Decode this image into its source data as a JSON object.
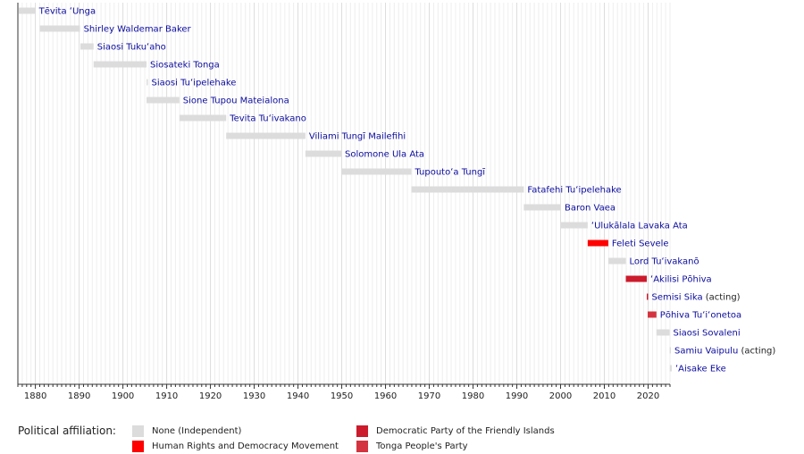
{
  "chart_data": {
    "type": "timeline",
    "xlim": [
      1876,
      2025
    ],
    "major_tick_step": 10,
    "minor_tick_step": 1,
    "colors": {
      "None (Independent)": "#dcdcdc",
      "Human Rights and Democracy Movement": "#ff0000",
      "Democratic Party of the Friendly Islands": "#cc1b2c",
      "Tonga People's Party": "#d4343f"
    },
    "rows": [
      {
        "name": "Tēvita ʻUnga",
        "note": "",
        "start": 1876.2,
        "end": 1880.0,
        "party": "None (Independent)"
      },
      {
        "name": "Shirley Waldemar Baker",
        "note": "",
        "start": 1881.0,
        "end": 1890.2,
        "party": "None (Independent)"
      },
      {
        "name": "Siaosi Tukuʻaho",
        "note": "",
        "start": 1890.3,
        "end": 1893.3,
        "party": "None (Independent)"
      },
      {
        "name": "Siosateki Tonga",
        "note": "",
        "start": 1893.3,
        "end": 1905.4,
        "party": "None (Independent)"
      },
      {
        "name": "Siaosi Tuʻipelehake",
        "note": "",
        "start": 1905.4,
        "end": 1905.6,
        "party": "None (Independent)"
      },
      {
        "name": "Sione Tupou Mateialona",
        "note": "",
        "start": 1905.4,
        "end": 1912.9,
        "party": "None (Independent)"
      },
      {
        "name": "Tevita Tuʻivakano",
        "note": "",
        "start": 1912.9,
        "end": 1923.6,
        "party": "None (Independent)"
      },
      {
        "name": "Viliami Tungī Mailefihi",
        "note": "",
        "start": 1923.6,
        "end": 1941.7,
        "party": "None (Independent)"
      },
      {
        "name": "Solomone Ula Ata",
        "note": "",
        "start": 1941.7,
        "end": 1949.9,
        "party": "None (Independent)"
      },
      {
        "name": "Tupoutoʻa Tungī",
        "note": "",
        "start": 1949.9,
        "end": 1965.9,
        "party": "None (Independent)"
      },
      {
        "name": "Fatafehi Tuʻipelehake",
        "note": "",
        "start": 1965.9,
        "end": 1991.6,
        "party": "None (Independent)"
      },
      {
        "name": "Baron Vaea",
        "note": "",
        "start": 1991.6,
        "end": 2000.1,
        "party": "None (Independent)"
      },
      {
        "name": "ʻUlukālala Lavaka Ata",
        "note": "",
        "start": 2000.1,
        "end": 2006.2,
        "party": "None (Independent)"
      },
      {
        "name": "Feleti Sevele",
        "note": "",
        "start": 2006.2,
        "end": 2010.9,
        "party": "Human Rights and Democracy Movement"
      },
      {
        "name": "Lord Tuʻivakanō",
        "note": "",
        "start": 2010.9,
        "end": 2014.9,
        "party": "None (Independent)"
      },
      {
        "name": "ʻAkilisi Pōhiva",
        "note": "",
        "start": 2014.9,
        "end": 2019.7,
        "party": "Democratic Party of the Friendly Islands"
      },
      {
        "name": "Semisi Sika",
        "note": "(acting)",
        "start": 2019.7,
        "end": 2019.9,
        "party": "Democratic Party of the Friendly Islands"
      },
      {
        "name": "Pōhiva Tuʻiʻonetoa",
        "note": "",
        "start": 2019.9,
        "end": 2021.9,
        "party": "Tonga People's Party"
      },
      {
        "name": "Siaosi Sovaleni",
        "note": "",
        "start": 2021.9,
        "end": 2024.9,
        "party": "None (Independent)"
      },
      {
        "name": "Samiu Vaipulu",
        "note": "(acting)",
        "start": 2024.9,
        "end": 2024.95,
        "party": "None (Independent)"
      },
      {
        "name": "ʻAisake Eke",
        "note": "",
        "start": 2024.95,
        "end": 2025.4,
        "party": "None (Independent)"
      }
    ],
    "ticks": [
      "1880",
      "1890",
      "1900",
      "1910",
      "1920",
      "1930",
      "1940",
      "1950",
      "1960",
      "1970",
      "1980",
      "1990",
      "2000",
      "2010",
      "2020"
    ],
    "legend": {
      "title": "Political affiliation:",
      "entries": [
        {
          "label": "None (Independent)",
          "color": "#dcdcdc"
        },
        {
          "label": "Human Rights and Democracy Movement",
          "color": "#ff0000"
        },
        {
          "label": "Democratic Party of the Friendly Islands",
          "color": "#cc1b2c"
        },
        {
          "label": "Tonga People's Party",
          "color": "#d4343f"
        }
      ]
    }
  }
}
